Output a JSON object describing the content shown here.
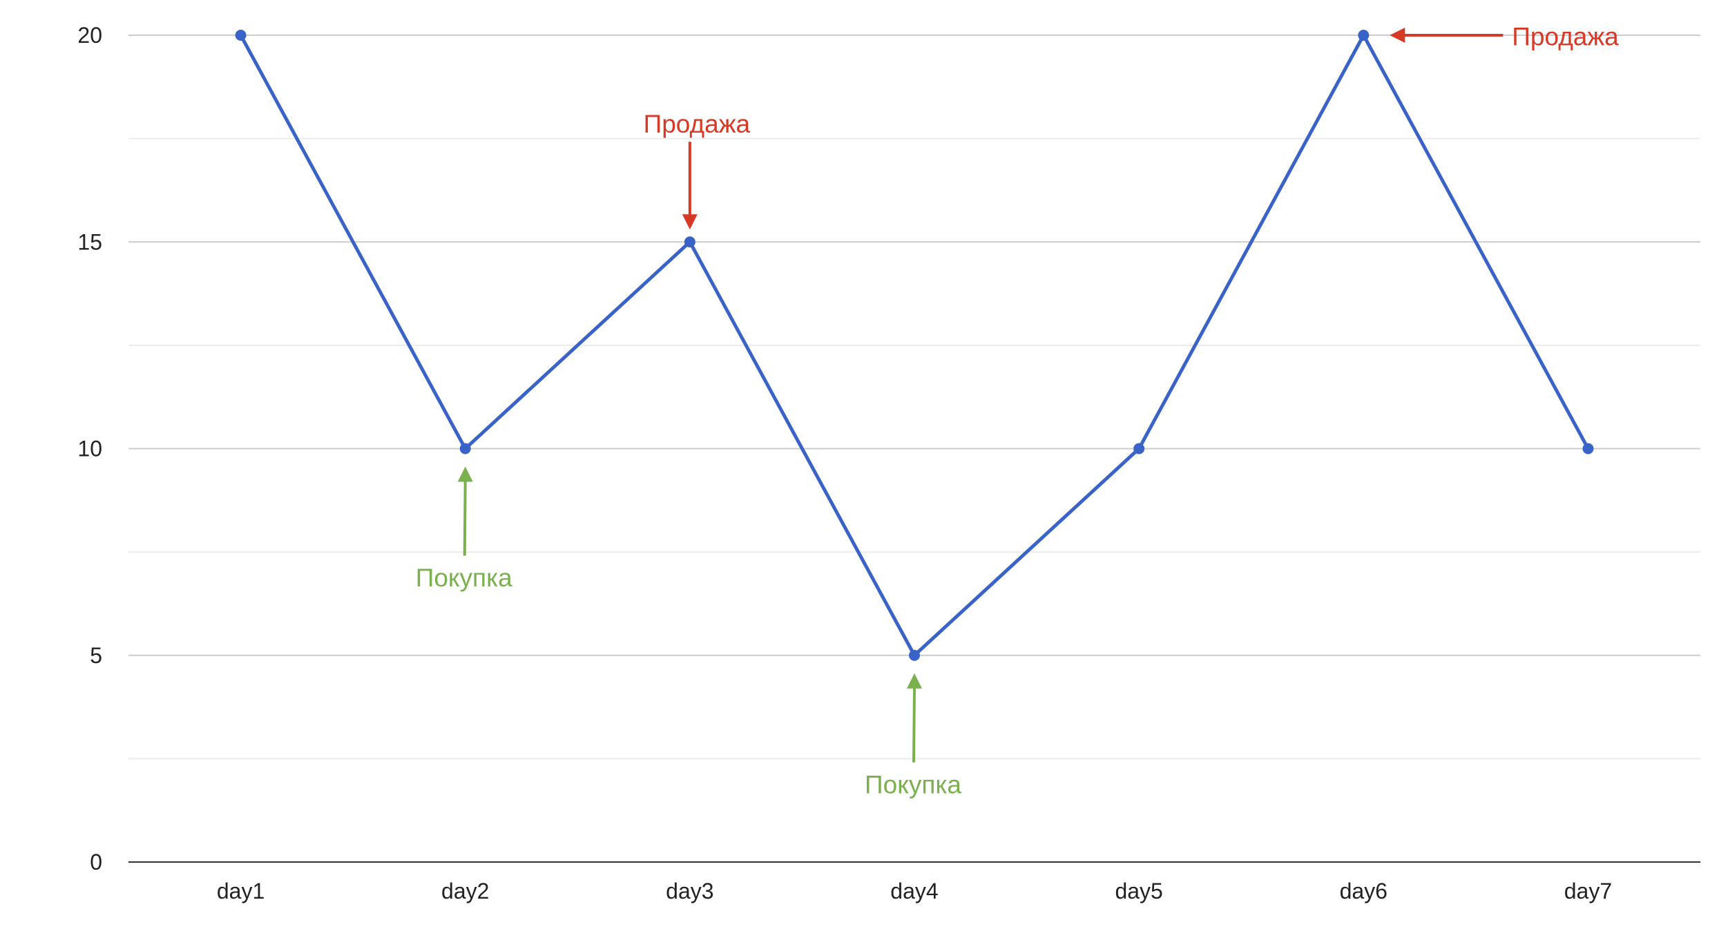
{
  "chart_data": {
    "type": "line",
    "title": "",
    "xlabel": "",
    "ylabel": "",
    "categories": [
      "day1",
      "day2",
      "day3",
      "day4",
      "day5",
      "day6",
      "day7"
    ],
    "series": [
      {
        "values": [
          20,
          10,
          15,
          5,
          10,
          20,
          10
        ]
      }
    ],
    "ylim": [
      0,
      20
    ],
    "yticks": [
      0,
      5,
      10,
      15,
      20
    ],
    "minor_gridlines": true,
    "grid": true,
    "legend": "none",
    "line_color": "#3a63c8",
    "annotations": [
      {
        "text": "Покупка",
        "category": "day2",
        "value": 10,
        "type": "buy",
        "color": "#7ab04d"
      },
      {
        "text": "Продажа",
        "category": "day3",
        "value": 15,
        "type": "sell",
        "color": "#d63a26"
      },
      {
        "text": "Покупка",
        "category": "day4",
        "value": 5,
        "type": "buy",
        "color": "#7ab04d"
      },
      {
        "text": "Продажа",
        "category": "day6",
        "value": 20,
        "type": "sell",
        "color": "#d63a26"
      }
    ]
  }
}
